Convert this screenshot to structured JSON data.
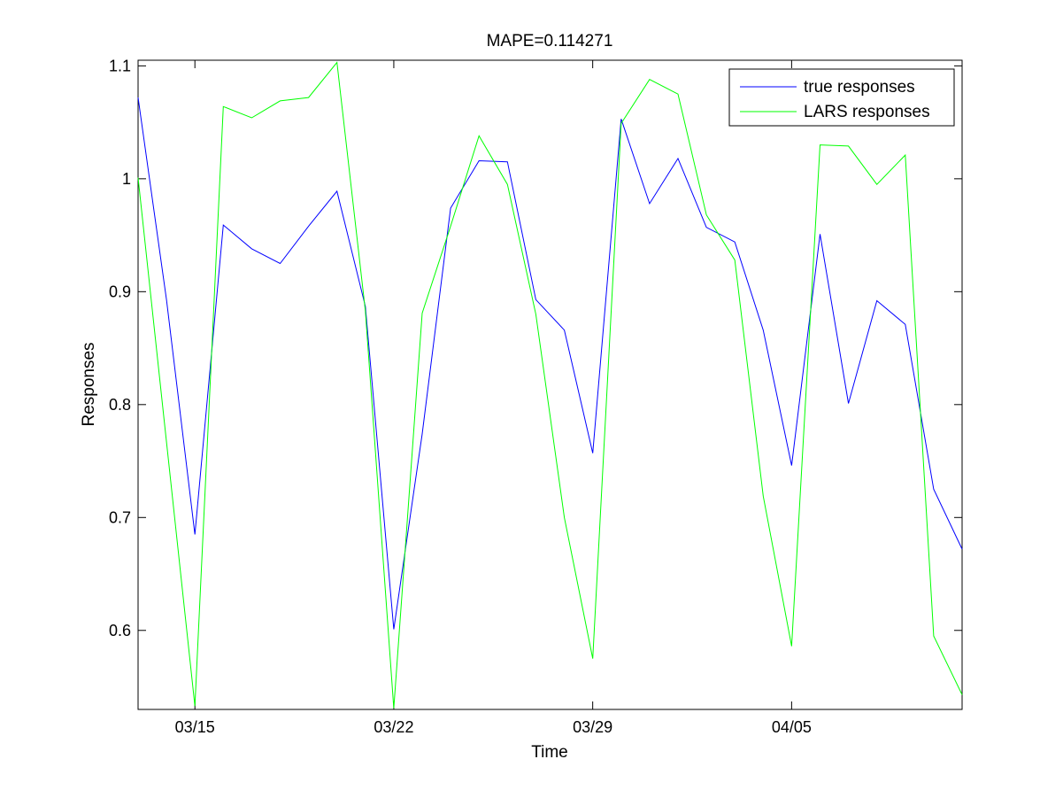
{
  "chart_data": {
    "type": "line",
    "title": "MAPE=0.114271",
    "xlabel": "Time",
    "ylabel": "Responses",
    "x": [
      "03/13",
      "03/14",
      "03/15",
      "03/16",
      "03/17",
      "03/18",
      "03/19",
      "03/20",
      "03/21",
      "03/22",
      "03/23",
      "03/24",
      "03/25",
      "03/26",
      "03/27",
      "03/28",
      "03/29",
      "03/30",
      "03/31",
      "04/01",
      "04/02",
      "04/03",
      "04/04",
      "04/05",
      "04/06",
      "04/07",
      "04/08",
      "04/09",
      "04/10",
      "04/11"
    ],
    "xlim": [
      "03/13",
      "04/11"
    ],
    "ylim": [
      0.53,
      1.105
    ],
    "x_ticks": [
      "03/15",
      "03/22",
      "03/29",
      "04/05"
    ],
    "y_ticks": [
      0.6,
      0.7,
      0.8,
      0.9,
      1,
      1.1
    ],
    "y_tick_labels": [
      "0.6",
      "0.7",
      "0.8",
      "0.9",
      "1",
      "1.1"
    ],
    "grid": false,
    "legend_position": "top-right",
    "series": [
      {
        "name": "true responses",
        "color": "#0000ff",
        "values": [
          1.072,
          0.893,
          0.685,
          0.959,
          0.938,
          0.925,
          0.958,
          0.989,
          0.887,
          0.601,
          0.774,
          0.974,
          1.016,
          1.015,
          0.893,
          0.866,
          0.757,
          1.053,
          0.978,
          1.018,
          0.957,
          0.944,
          0.866,
          0.746,
          0.951,
          0.801,
          0.892,
          0.871,
          0.725,
          0.672
        ]
      },
      {
        "name": "LARS responses",
        "color": "#00ff00",
        "values": [
          1.001,
          0.767,
          0.533,
          1.064,
          1.054,
          1.069,
          1.072,
          1.103,
          0.883,
          0.531,
          0.881,
          0.958,
          1.038,
          0.995,
          0.88,
          0.7,
          0.575,
          1.049,
          1.088,
          1.075,
          0.968,
          0.928,
          0.719,
          0.586,
          1.03,
          1.029,
          0.995,
          1.021,
          0.595,
          0.543
        ]
      }
    ]
  }
}
